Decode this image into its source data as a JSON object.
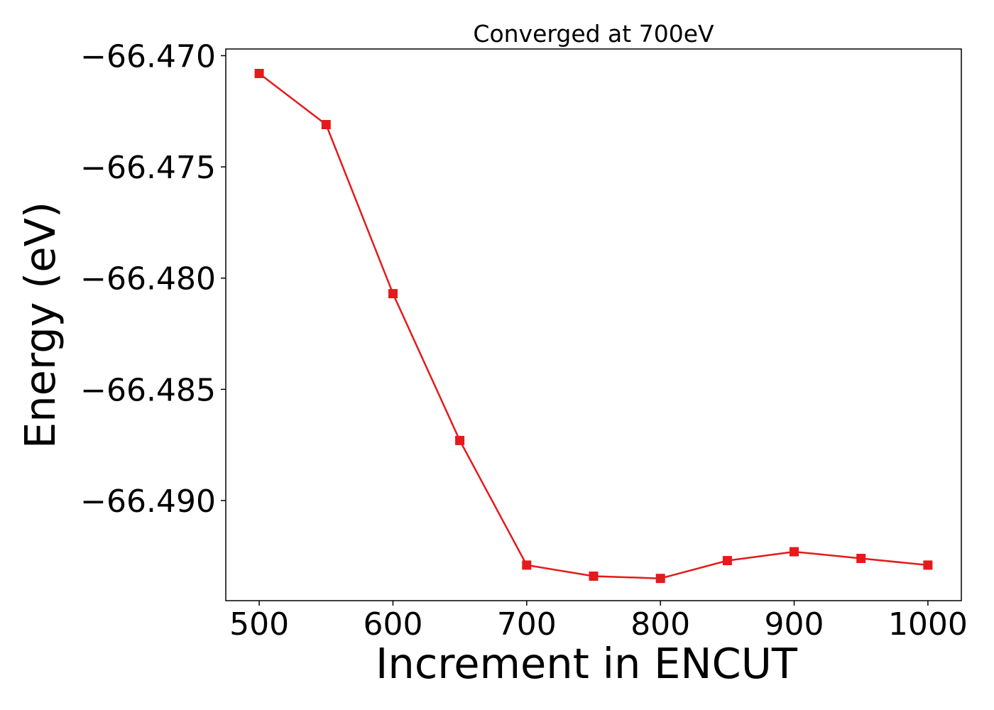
{
  "chart_data": {
    "type": "line",
    "title": "Converged at 700eV",
    "xlabel": "Increment in ENCUT",
    "ylabel": "Energy (eV)",
    "x": [
      500,
      550,
      600,
      650,
      700,
      750,
      800,
      850,
      900,
      950,
      1000
    ],
    "series": [
      {
        "values": [
          -66.4708,
          -66.4731,
          -66.4807,
          -66.4873,
          -66.4929,
          -66.4934,
          -66.4935,
          -66.4927,
          -66.4923,
          -66.4926,
          -66.4929
        ],
        "color": "#e41a1c",
        "marker": "square"
      }
    ],
    "xlim": [
      475,
      1025
    ],
    "ylim": [
      -66.4945,
      -66.4697
    ],
    "xticks": [
      500,
      600,
      700,
      800,
      900,
      1000
    ],
    "xtick_labels": [
      "500",
      "600",
      "700",
      "800",
      "900",
      "1000"
    ],
    "yticks": [
      -66.47,
      -66.475,
      -66.48,
      -66.485,
      -66.49
    ],
    "ytick_labels": [
      "−66.470",
      "−66.475",
      "−66.480",
      "−66.485",
      "−66.490"
    ],
    "grid": false,
    "legend": "none"
  }
}
